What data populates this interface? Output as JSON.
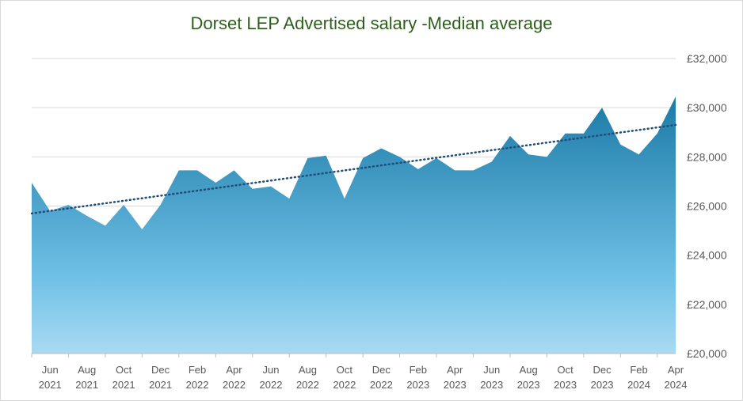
{
  "chart_data": {
    "type": "area",
    "title": "Dorset LEP Advertised salary -Median average",
    "xlabel": "",
    "ylabel": "",
    "ylim": [
      20000,
      32000
    ],
    "y_ticks": [
      "£20,000",
      "£22,000",
      "£24,000",
      "£26,000",
      "£28,000",
      "£30,000",
      "£32,000"
    ],
    "y_tick_values": [
      20000,
      22000,
      24000,
      26000,
      28000,
      30000,
      32000
    ],
    "x": [
      "May 2021",
      "Jun 2021",
      "Jul 2021",
      "Aug 2021",
      "Sep 2021",
      "Oct 2021",
      "Nov 2021",
      "Dec 2021",
      "Jan 2022",
      "Feb 2022",
      "Mar 2022",
      "Apr 2022",
      "May 2022",
      "Jun 2022",
      "Jul 2022",
      "Aug 2022",
      "Sep 2022",
      "Oct 2022",
      "Nov 2022",
      "Dec 2022",
      "Jan 2023",
      "Feb 2023",
      "Mar 2023",
      "Apr 2023",
      "May 2023",
      "Jun 2023",
      "Jul 2023",
      "Aug 2023",
      "Sep 2023",
      "Oct 2023",
      "Nov 2023",
      "Dec 2023",
      "Jan 2024",
      "Feb 2024",
      "Mar 2024",
      "Apr 2024"
    ],
    "x_tick_labels": [
      {
        "month": "Jun",
        "year": "2021",
        "index": 1
      },
      {
        "month": "Aug",
        "year": "2021",
        "index": 3
      },
      {
        "month": "Oct",
        "year": "2021",
        "index": 5
      },
      {
        "month": "Dec",
        "year": "2021",
        "index": 7
      },
      {
        "month": "Feb",
        "year": "2022",
        "index": 9
      },
      {
        "month": "Apr",
        "year": "2022",
        "index": 11
      },
      {
        "month": "Jun",
        "year": "2022",
        "index": 13
      },
      {
        "month": "Aug",
        "year": "2022",
        "index": 15
      },
      {
        "month": "Oct",
        "year": "2022",
        "index": 17
      },
      {
        "month": "Dec",
        "year": "2022",
        "index": 19
      },
      {
        "month": "Feb",
        "year": "2023",
        "index": 21
      },
      {
        "month": "Apr",
        "year": "2023",
        "index": 23
      },
      {
        "month": "Jun",
        "year": "2023",
        "index": 25
      },
      {
        "month": "Aug",
        "year": "2023",
        "index": 27
      },
      {
        "month": "Oct",
        "year": "2023",
        "index": 29
      },
      {
        "month": "Dec",
        "year": "2023",
        "index": 31
      },
      {
        "month": "Feb",
        "year": "2024",
        "index": 33
      },
      {
        "month": "Apr",
        "year": "2024",
        "index": 35
      }
    ],
    "series": [
      {
        "values": [
          26950,
          25800,
          26050,
          25600,
          25200,
          26050,
          25050,
          26050,
          27450,
          27450,
          26950,
          27450,
          26700,
          26800,
          26300,
          27950,
          28050,
          26300,
          27950,
          28350,
          28000,
          27500,
          27950,
          27450,
          27450,
          27800,
          28850,
          28100,
          28000,
          28950,
          28950,
          30000,
          28500,
          28100,
          28950,
          30450
        ]
      }
    ],
    "trendline": {
      "type": "linear",
      "start": 25700,
      "end": 29300,
      "color": "#1f4e79"
    },
    "grid": true,
    "legend": "none",
    "colors": {
      "area_top": "#1b7aa6",
      "area_mid": "#6fc0e6",
      "area_bottom": "#a8daf2",
      "grid": "#d9d9d9",
      "title": "#2e5e1c"
    }
  }
}
